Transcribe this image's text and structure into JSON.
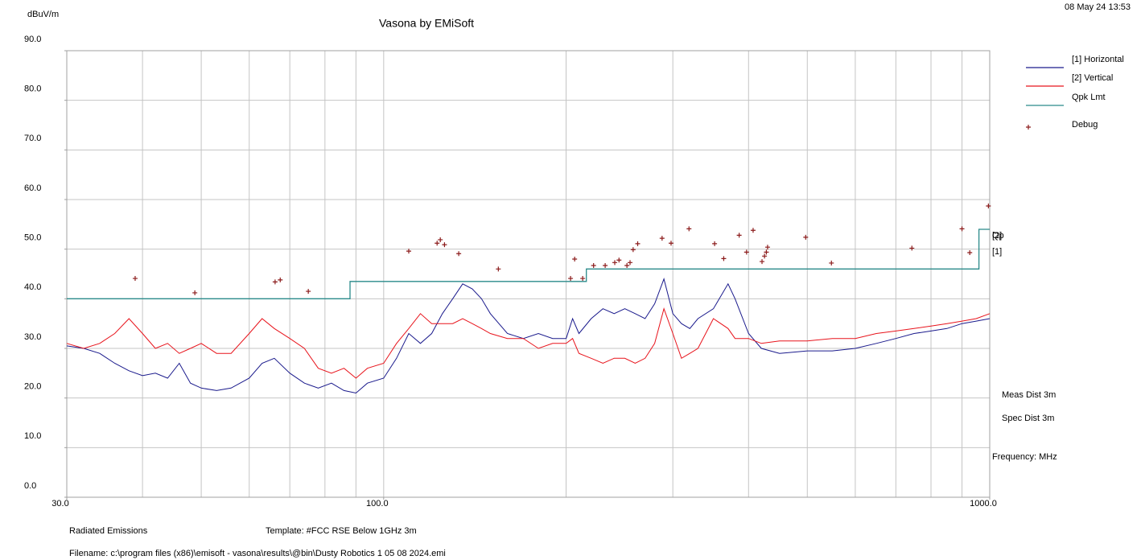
{
  "chart_data": {
    "type": "line",
    "title": "Vasona by EMiSoft",
    "timestamp": "08 May 24 13:53",
    "y_label": "dBuV/m",
    "x_label": "Frequency: MHz",
    "annotations": [
      "Meas Dist 3m",
      "Spec Dist 3m"
    ],
    "trace_markers": [
      "[2]",
      "Qp",
      "[1]"
    ],
    "footer": {
      "report": "Radiated Emissions",
      "template": "Template: #FCC RSE Below 1GHz  3m",
      "filename": "Filename: c:\\program files (x86)\\emisoft - vasona\\results\\@bin\\Dusty Robotics 1 05 08 2024.emi"
    },
    "xscale": "log",
    "xlim": [
      30,
      1000
    ],
    "xticks": [
      {
        "value": 30,
        "label": "30.0"
      },
      {
        "value": 100,
        "label": "100.0"
      },
      {
        "value": 1000,
        "label": "1000.0"
      }
    ],
    "xgrid": [
      40,
      50,
      60,
      70,
      80,
      90,
      100,
      200,
      300,
      400,
      500,
      600,
      700,
      800,
      900
    ],
    "ylim": [
      0,
      90
    ],
    "yticks": [
      {
        "value": 0,
        "label": "0.0"
      },
      {
        "value": 10,
        "label": "10.0"
      },
      {
        "value": 20,
        "label": "20.0"
      },
      {
        "value": 30,
        "label": "30.0"
      },
      {
        "value": 40,
        "label": "40.0"
      },
      {
        "value": 50,
        "label": "50.0"
      },
      {
        "value": 60,
        "label": "60.0"
      },
      {
        "value": 70,
        "label": "70.0"
      },
      {
        "value": 80,
        "label": "80.0"
      },
      {
        "value": 90,
        "label": "90.0"
      }
    ],
    "grid": true,
    "legend": "top-right",
    "x": [
      30,
      32,
      34,
      36,
      38,
      40,
      42,
      44,
      46,
      48,
      50,
      53,
      56,
      60,
      63,
      66,
      70,
      74,
      78,
      82,
      86,
      90,
      94,
      100,
      105,
      110,
      115,
      120,
      125,
      130,
      135,
      140,
      145,
      150,
      160,
      170,
      180,
      190,
      200,
      205,
      210,
      220,
      230,
      240,
      250,
      260,
      270,
      280,
      290,
      300,
      310,
      320,
      330,
      350,
      370,
      380,
      400,
      420,
      450,
      500,
      550,
      600,
      650,
      700,
      750,
      800,
      850,
      900,
      950,
      1000
    ],
    "series": [
      {
        "name": "[1] Horizontal",
        "color": "#1a1a8c",
        "style": "line",
        "values": [
          30.5,
          30,
          29,
          27,
          25.5,
          24.5,
          25,
          24,
          27,
          23,
          22,
          21.5,
          22,
          24,
          27,
          28,
          25,
          23,
          22,
          23,
          21.5,
          21,
          23,
          24,
          28,
          33,
          31,
          33,
          37,
          40,
          43,
          42,
          40,
          37,
          33,
          32,
          33,
          32,
          32,
          36,
          33,
          36,
          38,
          37,
          38,
          37,
          36,
          39,
          44,
          37,
          35,
          34,
          36,
          38,
          43,
          40,
          33,
          30,
          29,
          29.5,
          29.5,
          30,
          31,
          32,
          33,
          33.5,
          34,
          35,
          35.5,
          36
        ]
      },
      {
        "name": "[2] Vertical",
        "color": "#e8141c",
        "style": "line",
        "values": [
          31,
          30,
          31,
          33,
          36,
          33,
          30,
          31,
          29,
          30,
          31,
          29,
          29,
          33,
          36,
          34,
          32,
          30,
          26,
          25,
          26,
          24,
          26,
          27,
          31,
          34,
          37,
          35,
          35,
          35,
          36,
          35,
          34,
          33,
          32,
          32,
          30,
          31,
          31,
          32,
          29,
          28,
          27,
          28,
          28,
          27,
          28,
          31,
          38,
          33,
          28,
          29,
          30,
          36,
          34,
          32,
          32,
          31,
          31.5,
          31.5,
          32,
          32,
          33,
          33.5,
          34,
          34.5,
          35,
          35.5,
          36,
          37
        ]
      },
      {
        "name": "Qpk Lmt",
        "color": "#2a8a8a",
        "style": "line",
        "x": [
          30,
          88,
          88,
          216,
          216,
          960,
          960,
          1000
        ],
        "values": [
          40,
          40,
          43.5,
          43.5,
          46,
          46,
          54,
          54
        ]
      },
      {
        "name": "Debug",
        "color": "#8b1a1a",
        "style": "markers",
        "x": [
          38.9,
          48.8,
          66.2,
          67.5,
          75.1,
          110,
          122.5,
          124,
          126,
          133,
          154.6,
          203.4,
          206.6,
          213,
          222,
          232,
          240.6,
          244.5,
          252,
          255,
          258,
          262.5,
          288,
          298,
          319,
          351.6,
          364,
          386,
          397,
          407,
          421,
          425,
          428,
          430,
          497,
          548,
          744,
          900,
          927,
          995
        ],
        "values": [
          44.1,
          41.2,
          43.4,
          43.8,
          41.5,
          49.6,
          51.2,
          51.9,
          50.9,
          49.1,
          46.0,
          44.1,
          48.0,
          44.1,
          46.7,
          46.7,
          47.3,
          47.8,
          46.7,
          47.3,
          49.9,
          51.1,
          52.2,
          51.2,
          54.1,
          51.1,
          48.1,
          52.8,
          49.4,
          53.8,
          47.5,
          48.6,
          49.4,
          50.4,
          52.4,
          47.2,
          50.2,
          54.1,
          49.3,
          58.7
        ]
      }
    ]
  }
}
